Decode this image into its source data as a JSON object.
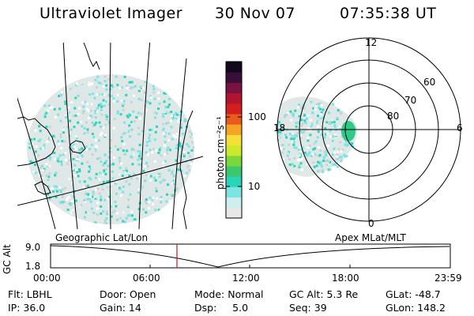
{
  "header": {
    "instrument": "Ultraviolet Imager",
    "date": "30 Nov 07",
    "time": "07:35:38 UT"
  },
  "geo_panel": {
    "label": "Geographic Lat/Lon"
  },
  "colorbar": {
    "unit": "photon cm⁻²s⁻¹",
    "ticks": [
      "100",
      "10"
    ],
    "scale": "log",
    "colors": [
      "#e8e8e8",
      "#cfefef",
      "#7ee3e3",
      "#29d4b8",
      "#3cc86e",
      "#7ad83a",
      "#cfe82c",
      "#f5e03a",
      "#f5a428",
      "#ea5a1e",
      "#d41e1e",
      "#b0142e",
      "#7a1240",
      "#3a0e38",
      "#120a1c"
    ]
  },
  "polar_panel": {
    "label": "Apex MLat/MLT",
    "mlt_labels": {
      "top": "12",
      "bottom": "0",
      "left": "18",
      "right": "6"
    },
    "lat_labels": [
      "60",
      "70",
      "80"
    ]
  },
  "timeline": {
    "ylabel": "GC Alt",
    "yticks": [
      "9.0",
      "1.8"
    ],
    "xticks": [
      "00:00",
      "06:00",
      "12:00",
      "18:00",
      "23:59"
    ],
    "marker_time_hours": 7.59,
    "marker_color": "#d01010"
  },
  "status": {
    "flt": "Flt: LBHL",
    "ip": "IP: 36.0",
    "door": "Door: Open",
    "gain": "Gain: 14",
    "mode": "Mode: Normal",
    "dsp": "Dsp:     5.0",
    "gc_alt": "GC Alt: 5.3 Re",
    "seq": "Seq: 39",
    "glat": "GLat: -48.7",
    "glon": "GLon: 148.2"
  }
}
